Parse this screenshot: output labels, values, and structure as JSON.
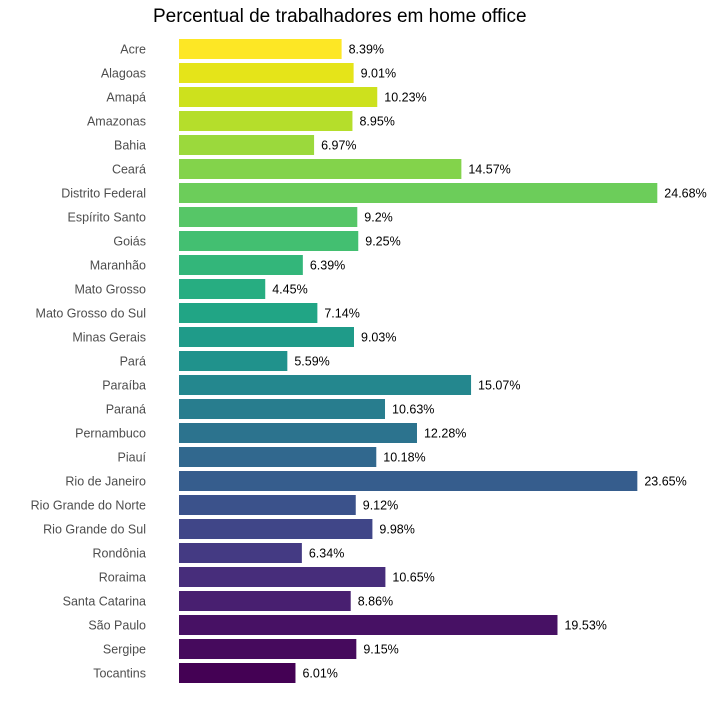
{
  "chart_data": {
    "type": "bar",
    "orientation": "horizontal",
    "title": "Percentual de trabalhadores em home office",
    "xlabel": "",
    "ylabel": "",
    "grid": false,
    "legend": "none",
    "xlim": [
      0,
      25.5
    ],
    "colormap": "viridis (reversed: first category yellow, last category dark purple)",
    "categories": [
      "Acre",
      "Alagoas",
      "Amapá",
      "Amazonas",
      "Bahia",
      "Ceará",
      "Distrito Federal",
      "Espírito Santo",
      "Goiás",
      "Maranhão",
      "Mato Grosso",
      "Mato Grosso do Sul",
      "Minas Gerais",
      "Pará",
      "Paraíba",
      "Paraná",
      "Pernambuco",
      "Piauí",
      "Rio de Janeiro",
      "Rio Grande do Norte",
      "Rio Grande do Sul",
      "Rondônia",
      "Roraima",
      "Santa Catarina",
      "São Paulo",
      "Sergipe",
      "Tocantins"
    ],
    "values": [
      8.39,
      9.01,
      10.23,
      8.95,
      6.97,
      14.57,
      24.68,
      9.2,
      9.25,
      6.39,
      4.45,
      7.14,
      9.03,
      5.59,
      15.07,
      10.63,
      12.28,
      10.18,
      23.65,
      9.12,
      9.98,
      6.34,
      10.65,
      8.86,
      19.53,
      9.15,
      6.01
    ],
    "value_labels": [
      "8.39%",
      "9.01%",
      "10.23%",
      "8.95%",
      "6.97%",
      "14.57%",
      "24.68%",
      "9.2%",
      "9.25%",
      "6.39%",
      "4.45%",
      "7.14%",
      "9.03%",
      "5.59%",
      "15.07%",
      "10.63%",
      "12.28%",
      "10.18%",
      "23.65%",
      "9.12%",
      "9.98%",
      "6.34%",
      "10.65%",
      "8.86%",
      "19.53%",
      "9.15%",
      "6.01%"
    ],
    "colors": [
      "#fde725",
      "#e5e419",
      "#cde11d",
      "#b5de2b",
      "#9bd93c",
      "#83d34b",
      "#6ccd5a",
      "#56c667",
      "#43bf71",
      "#33b67a",
      "#27ad81",
      "#21a585",
      "#1f9b89",
      "#20928c",
      "#24878e",
      "#287d8e",
      "#2c738e",
      "#31688e",
      "#365d8d",
      "#3b528b",
      "#404688",
      "#443a83",
      "#472d7b",
      "#481f70",
      "#471164",
      "#460a5d",
      "#440154"
    ]
  }
}
